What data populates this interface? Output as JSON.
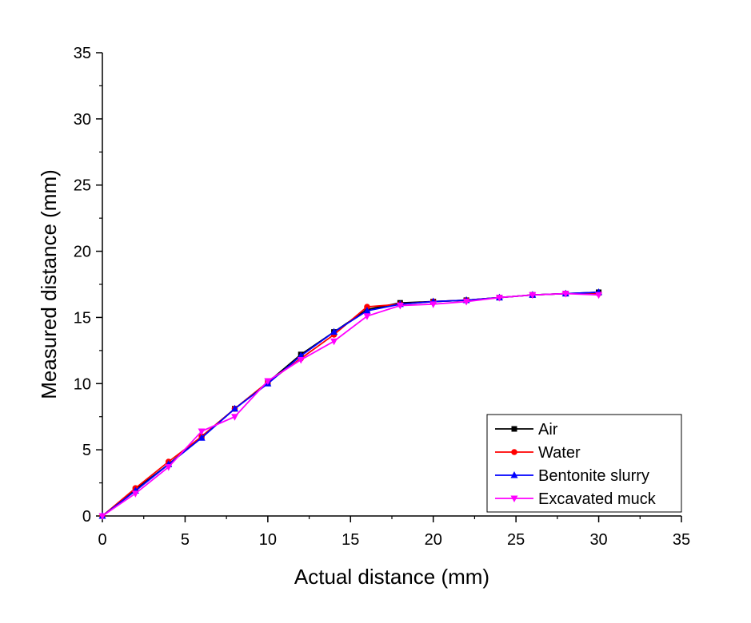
{
  "chart_data": {
    "type": "line",
    "title": "",
    "xlabel": "Actual distance (mm)",
    "ylabel": "Measured distance (mm)",
    "xlim": [
      0,
      35
    ],
    "ylim": [
      0,
      35
    ],
    "x_ticks": [
      "0",
      "5",
      "10",
      "15",
      "20",
      "25",
      "30",
      "35"
    ],
    "y_ticks": [
      "0",
      "5",
      "10",
      "15",
      "20",
      "25",
      "30",
      "35"
    ],
    "grid": false,
    "legend_position": "bottom-right",
    "x": [
      0,
      2,
      4,
      6,
      8,
      10,
      12,
      14,
      16,
      18,
      20,
      22,
      24,
      26,
      28,
      30
    ],
    "series": [
      {
        "name": "Air",
        "color": "#000000",
        "marker": "square",
        "values": [
          0,
          2.0,
          3.9,
          6.0,
          8.1,
          10.1,
          12.2,
          13.9,
          15.6,
          16.1,
          16.2,
          16.3,
          16.5,
          16.7,
          16.8,
          16.9
        ]
      },
      {
        "name": "Water",
        "color": "#ff0000",
        "marker": "circle",
        "values": [
          0,
          2.1,
          4.1,
          6.0,
          8.1,
          10.1,
          11.9,
          13.7,
          15.8,
          16.0,
          16.2,
          16.3,
          16.5,
          16.7,
          16.8,
          16.8
        ]
      },
      {
        "name": "Bentonite slurry",
        "color": "#0000ff",
        "marker": "triangle-up",
        "values": [
          0,
          1.9,
          3.9,
          5.9,
          8.1,
          10.0,
          12.1,
          13.9,
          15.5,
          16.0,
          16.2,
          16.3,
          16.5,
          16.7,
          16.8,
          16.9
        ]
      },
      {
        "name": "Excavated muck",
        "color": "#ff00ff",
        "marker": "triangle-down",
        "values": [
          0,
          1.7,
          3.7,
          6.4,
          7.5,
          10.2,
          11.8,
          13.2,
          15.1,
          15.9,
          16.0,
          16.2,
          16.5,
          16.7,
          16.8,
          16.7
        ]
      }
    ]
  }
}
